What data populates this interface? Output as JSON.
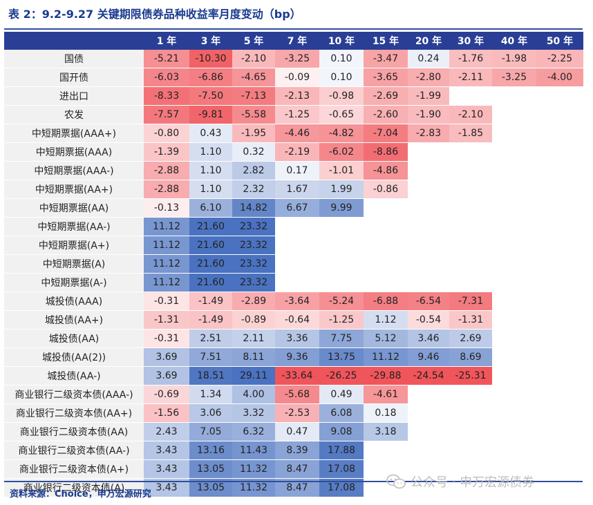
{
  "title": "表 2：9.2-9.27 关键期限债券品种收益率月度变动（bp）",
  "source": "资料来源：Choice，申万宏源研究",
  "watermark": "公众号 · 申万宏源债券",
  "colors": {
    "header_bg": "#2a3e96",
    "title": "#1a3a8f",
    "positive_max": "#4a72c0",
    "negative_max": "#f0555b"
  },
  "table": {
    "headers": [
      "1 年",
      "3 年",
      "5 年",
      "7 年",
      "10 年",
      "15 年",
      "20 年",
      "30 年",
      "40 年",
      "50 年"
    ],
    "rows": [
      {
        "label": "国债",
        "values": [
          "-5.21",
          "-10.30",
          "-2.10",
          "-3.25",
          "0.10",
          "-3.47",
          "0.24",
          "-1.76",
          "-1.98",
          "-2.25"
        ]
      },
      {
        "label": "国开债",
        "values": [
          "-6.03",
          "-6.86",
          "-4.65",
          "-0.09",
          "0.10",
          "-3.65",
          "-2.80",
          "-2.11",
          "-3.25",
          "-4.00"
        ]
      },
      {
        "label": "进出口",
        "values": [
          "-8.33",
          "-7.50",
          "-7.13",
          "-2.13",
          "-0.98",
          "-2.69",
          "-1.99",
          "",
          "",
          ""
        ]
      },
      {
        "label": "农发",
        "values": [
          "-7.57",
          "-9.81",
          "-5.58",
          "-1.25",
          "-0.65",
          "-2.60",
          "-1.90",
          "-2.10",
          "",
          ""
        ]
      },
      {
        "label": "中短期票据(AAA+)",
        "values": [
          "-0.80",
          "0.43",
          "-1.95",
          "-4.46",
          "-4.82",
          "-7.04",
          "-2.83",
          "-1.85",
          "",
          ""
        ]
      },
      {
        "label": "中短期票据(AAA)",
        "values": [
          "-1.39",
          "1.10",
          "0.32",
          "-2.19",
          "-6.02",
          "-8.86",
          "",
          "",
          "",
          ""
        ]
      },
      {
        "label": "中短期票据(AAA-)",
        "values": [
          "-2.88",
          "1.10",
          "2.82",
          "0.17",
          "-1.01",
          "-4.86",
          "",
          "",
          "",
          ""
        ]
      },
      {
        "label": "中短期票据(AA+)",
        "values": [
          "-2.88",
          "1.10",
          "2.32",
          "1.67",
          "1.99",
          "-0.86",
          "",
          "",
          "",
          ""
        ]
      },
      {
        "label": "中短期票据(AA)",
        "values": [
          "-0.13",
          "6.10",
          "14.82",
          "6.67",
          "9.99",
          "",
          "",
          "",
          "",
          ""
        ]
      },
      {
        "label": "中短期票据(AA-)",
        "values": [
          "11.12",
          "21.60",
          "23.32",
          "",
          "",
          "",
          "",
          "",
          "",
          ""
        ]
      },
      {
        "label": "中短期票据(A+)",
        "values": [
          "11.12",
          "21.60",
          "23.32",
          "",
          "",
          "",
          "",
          "",
          "",
          ""
        ]
      },
      {
        "label": "中短期票据(A)",
        "values": [
          "11.12",
          "21.60",
          "23.32",
          "",
          "",
          "",
          "",
          "",
          "",
          ""
        ]
      },
      {
        "label": "中短期票据(A-)",
        "values": [
          "11.12",
          "21.60",
          "23.32",
          "",
          "",
          "",
          "",
          "",
          "",
          ""
        ]
      },
      {
        "label": "城投债(AAA)",
        "values": [
          "-0.31",
          "-1.49",
          "-2.89",
          "-3.64",
          "-5.24",
          "-6.88",
          "-6.54",
          "-7.31",
          "",
          ""
        ]
      },
      {
        "label": "城投债(AA+)",
        "values": [
          "-1.31",
          "-1.49",
          "-0.89",
          "-0.64",
          "-1.25",
          "1.12",
          "-0.54",
          "-1.31",
          "",
          ""
        ]
      },
      {
        "label": "城投债(AA)",
        "values": [
          "-0.31",
          "2.51",
          "2.11",
          "3.36",
          "7.75",
          "5.12",
          "3.46",
          "2.69",
          "",
          ""
        ]
      },
      {
        "label": "城投债(AA(2))",
        "values": [
          "3.69",
          "7.51",
          "8.11",
          "9.36",
          "13.75",
          "11.12",
          "9.46",
          "8.69",
          "",
          ""
        ]
      },
      {
        "label": "城投债(AA-)",
        "values": [
          "3.69",
          "18.51",
          "29.11",
          "-33.64",
          "-26.25",
          "-29.88",
          "-24.54",
          "-25.31",
          "",
          ""
        ]
      },
      {
        "label": "商业银行二级资本债(AAA-)",
        "values": [
          "-0.69",
          "1.34",
          "4.00",
          "-5.68",
          "0.49",
          "-4.61",
          "",
          "",
          "",
          ""
        ]
      },
      {
        "label": "商业银行二级资本债(AA+)",
        "values": [
          "-1.56",
          "3.06",
          "3.32",
          "-2.53",
          "6.08",
          "0.18",
          "",
          "",
          "",
          ""
        ]
      },
      {
        "label": "商业银行二级资本债(AA)",
        "values": [
          "2.43",
          "7.05",
          "6.32",
          "0.47",
          "9.08",
          "3.18",
          "",
          "",
          "",
          ""
        ]
      },
      {
        "label": "商业银行二级资本债(AA-)",
        "values": [
          "3.43",
          "13.16",
          "11.43",
          "8.39",
          "17.88",
          "",
          "",
          "",
          "",
          ""
        ]
      },
      {
        "label": "商业银行二级资本债(A+)",
        "values": [
          "3.43",
          "13.05",
          "11.32",
          "8.47",
          "17.08",
          "",
          "",
          "",
          "",
          ""
        ]
      },
      {
        "label": "商业银行二级资本债(A)",
        "values": [
          "3.43",
          "13.05",
          "11.32",
          "8.47",
          "17.08",
          "",
          "",
          "",
          "",
          ""
        ]
      }
    ]
  }
}
